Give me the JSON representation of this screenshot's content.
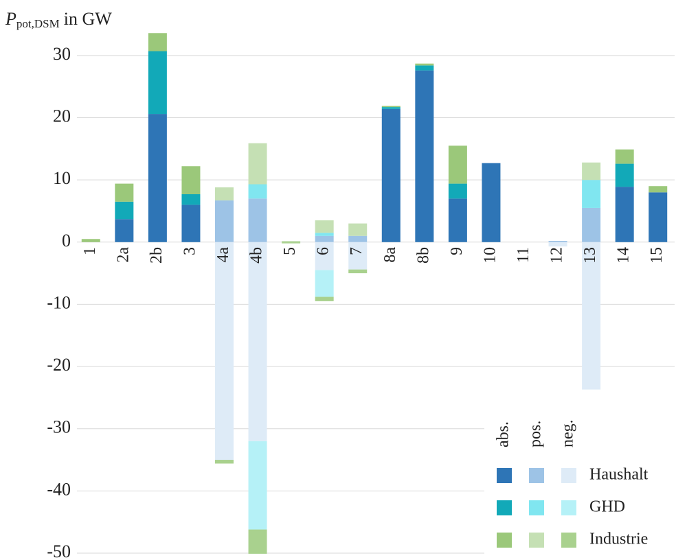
{
  "chart_data": {
    "type": "bar",
    "stacked": true,
    "y_label": {
      "symbol": "P",
      "subscript": "pot,DSM",
      "unit": "in GW"
    },
    "categories": [
      "1",
      "2a",
      "2b",
      "3",
      "4a",
      "4b",
      "5",
      "6",
      "7",
      "8a",
      "8b",
      "9",
      "10",
      "11",
      "12",
      "13",
      "14",
      "15"
    ],
    "series": [
      {
        "name": "Haushalt",
        "group": "abs.",
        "color": "#2e75b6",
        "values": [
          0,
          3.7,
          20.6,
          6.0,
          0,
          0,
          0,
          0,
          0,
          21.4,
          27.6,
          7.0,
          12.7,
          0,
          0,
          0,
          8.9,
          8.0
        ]
      },
      {
        "name": "GHD",
        "group": "abs.",
        "color": "#12a9b8",
        "values": [
          0,
          2.8,
          10.1,
          1.7,
          0,
          0,
          0,
          0,
          0,
          0.3,
          0.8,
          2.4,
          0,
          0,
          0,
          0,
          3.7,
          0
        ]
      },
      {
        "name": "Industrie",
        "group": "abs.",
        "color": "#9bc87a",
        "values": [
          0.5,
          2.9,
          2.9,
          4.5,
          0,
          0,
          0,
          0,
          0,
          0.2,
          0.3,
          6.1,
          0,
          0,
          0,
          0,
          2.3,
          1.0
        ]
      },
      {
        "name": "Haushalt",
        "group": "pos.",
        "color": "#9dc3e6",
        "values": [
          0,
          0,
          0,
          0,
          6.7,
          7.0,
          0,
          1.0,
          1.0,
          0,
          0,
          0,
          0,
          0,
          0.2,
          5.5,
          0,
          0
        ]
      },
      {
        "name": "GHD",
        "group": "pos.",
        "color": "#80e6f0",
        "values": [
          0,
          0,
          0,
          0,
          0,
          2.3,
          0,
          0.5,
          0,
          0,
          0,
          0,
          0,
          0,
          0,
          4.5,
          0,
          0
        ]
      },
      {
        "name": "Industrie",
        "group": "pos.",
        "color": "#c5e0b4",
        "values": [
          0,
          0,
          0,
          0,
          2.1,
          6.6,
          0.2,
          2.0,
          2.0,
          0,
          0,
          0,
          0,
          0,
          0,
          2.8,
          0,
          0
        ]
      },
      {
        "name": "Haushalt",
        "group": "neg.",
        "color": "#deebf7",
        "values": [
          0,
          0,
          0,
          0,
          -35.0,
          -32.0,
          0,
          -4.5,
          -4.4,
          0,
          0,
          0,
          0,
          0,
          -0.7,
          -23.7,
          0,
          0
        ]
      },
      {
        "name": "GHD",
        "group": "neg.",
        "color": "#b5f1f7",
        "values": [
          0,
          0,
          0,
          0,
          0,
          -14.2,
          0,
          -4.3,
          0,
          0,
          0,
          0,
          0,
          0,
          0,
          0,
          0,
          0
        ]
      },
      {
        "name": "Industrie",
        "group": "neg.",
        "color": "#a9d18e",
        "values": [
          0,
          0,
          0,
          0,
          -0.6,
          -3.9,
          -0.2,
          -0.7,
          -0.6,
          0,
          0,
          0,
          0,
          0,
          0,
          0,
          0,
          0
        ]
      }
    ],
    "ylim": [
      -50,
      35
    ],
    "yticks": [
      -50,
      -40,
      -30,
      -20,
      -10,
      0,
      10,
      20,
      30
    ],
    "grid": true
  }
}
